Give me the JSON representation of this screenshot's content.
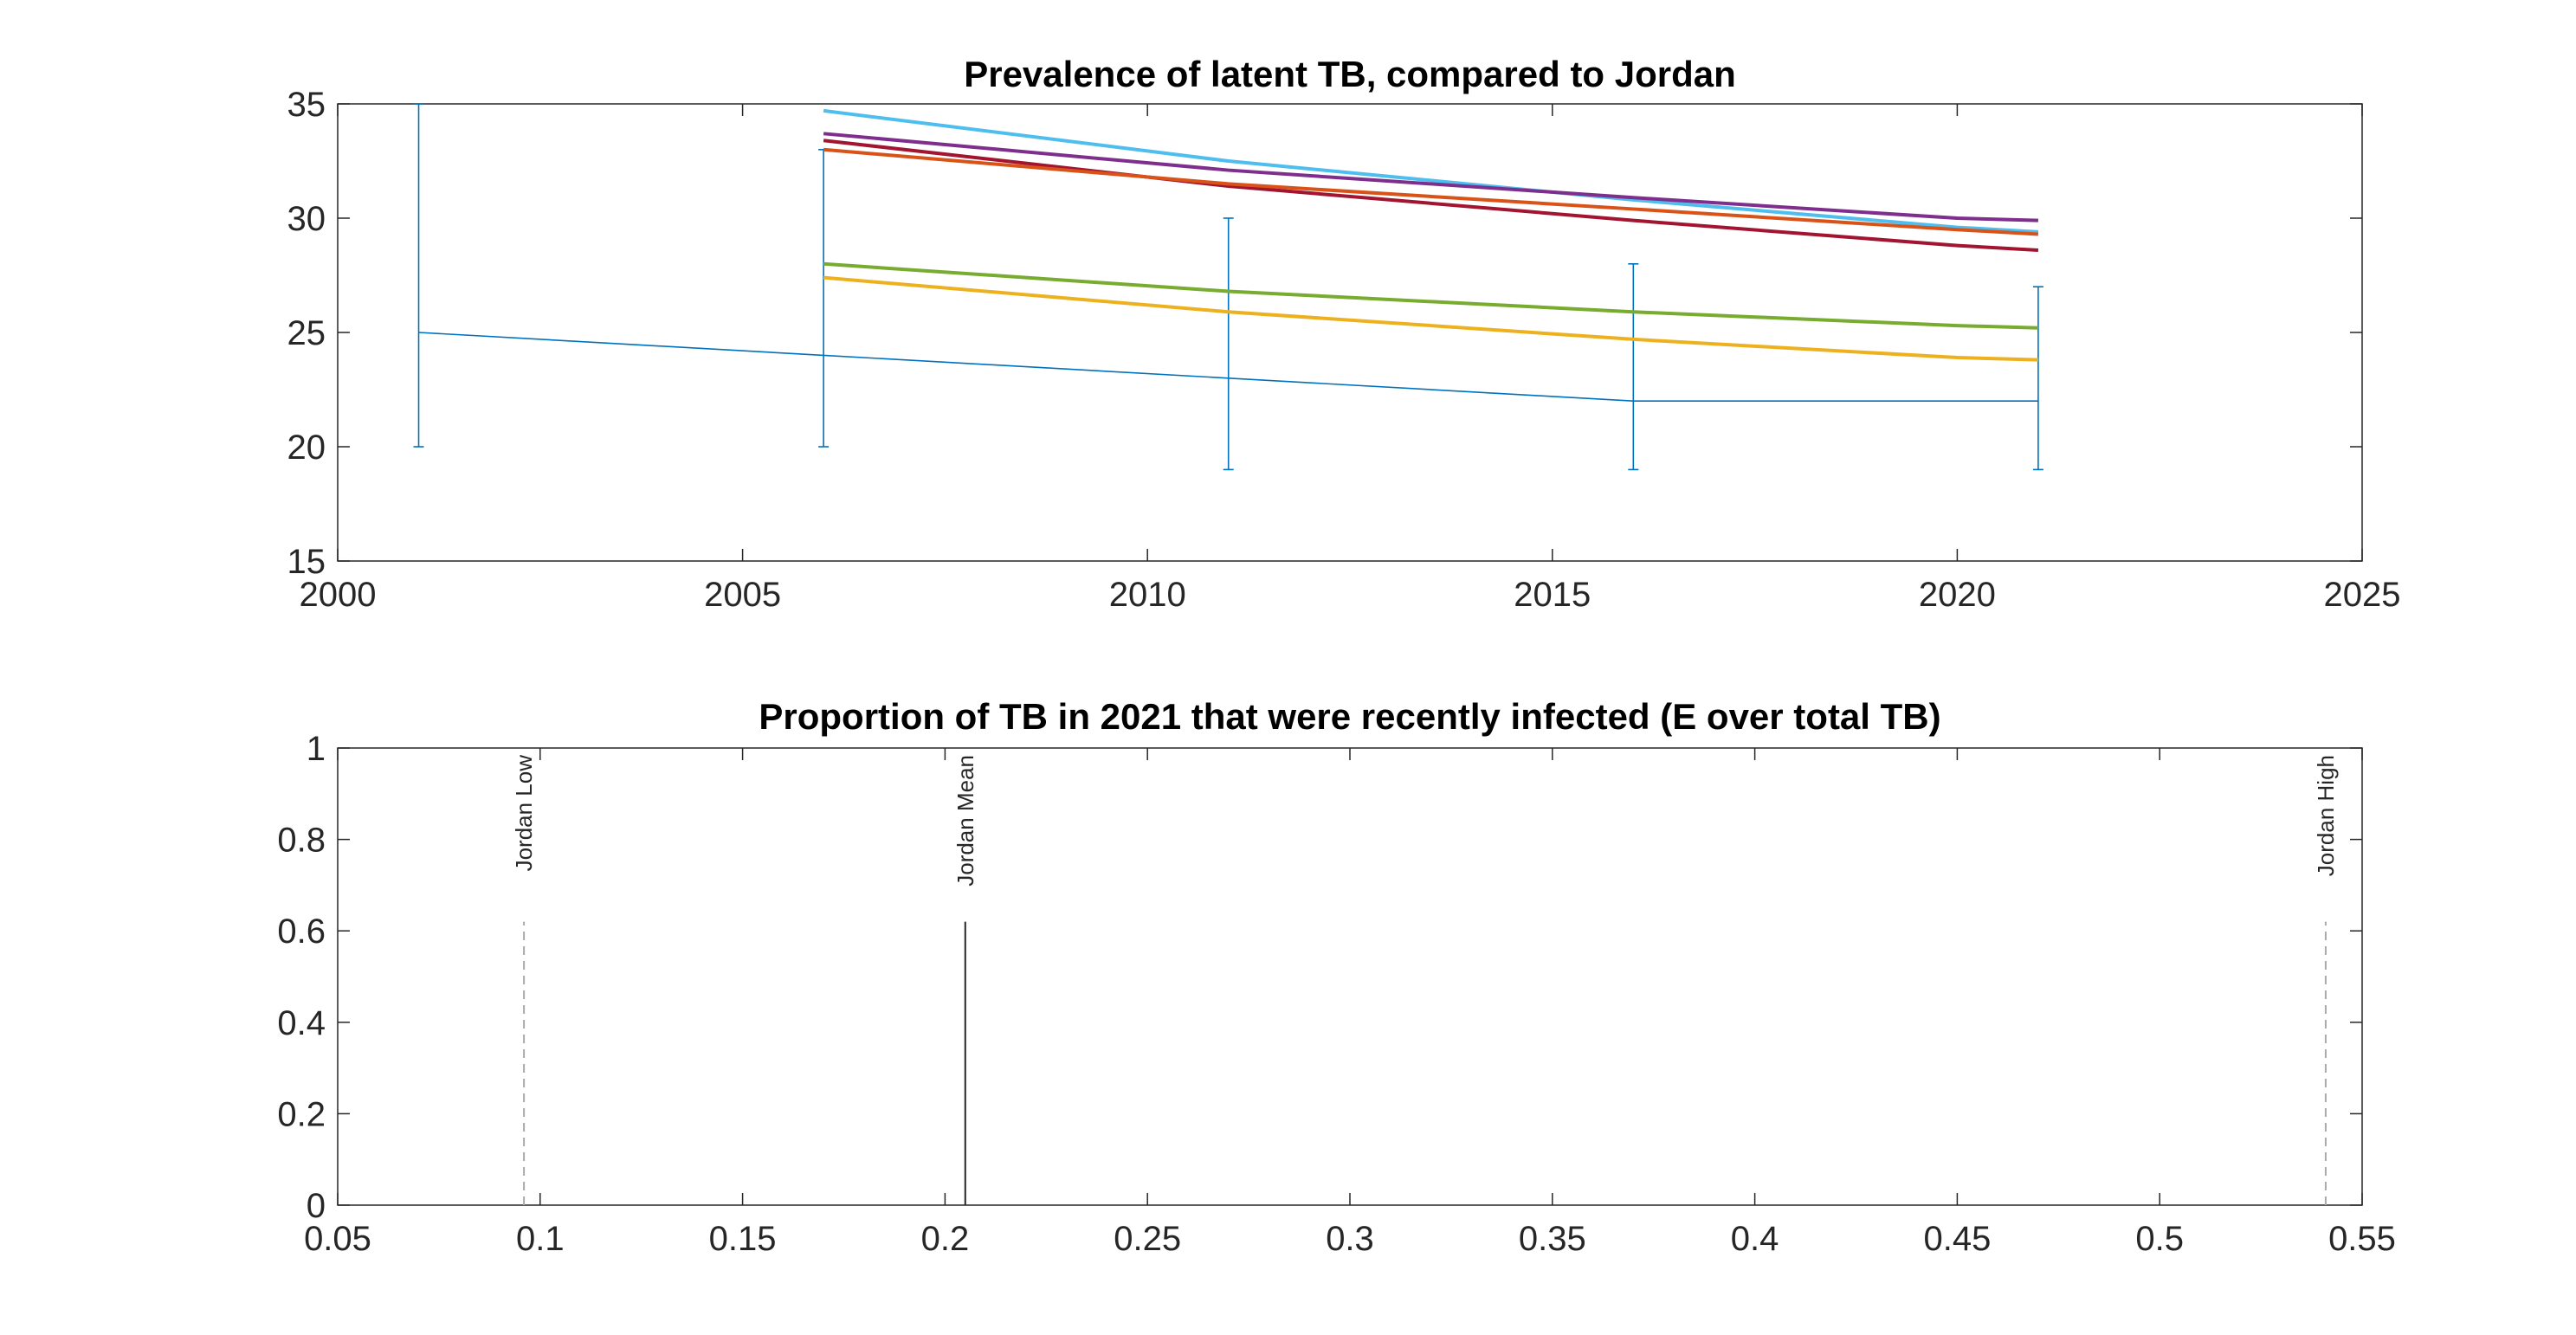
{
  "chart_data": [
    {
      "type": "line",
      "title": "Prevalence of latent TB, compared to Jordan",
      "xlabel": "",
      "ylabel": "",
      "xlim": [
        2000,
        2025
      ],
      "ylim": [
        15,
        35
      ],
      "xticks": [
        2000,
        2005,
        2010,
        2015,
        2020,
        2025
      ],
      "yticks": [
        15,
        20,
        25,
        30,
        35
      ],
      "grid": false,
      "errorbar_series": {
        "color": "#0072BD",
        "x": [
          2001,
          2006,
          2011,
          2016,
          2020,
          2021
        ],
        "y": [
          25,
          24,
          23,
          22,
          22,
          22
        ],
        "lower": [
          20,
          20,
          19,
          19,
          null,
          19
        ],
        "upper": [
          35,
          33,
          30,
          28,
          null,
          27
        ]
      },
      "series": [
        {
          "color": "#4DBEEE",
          "x": [
            2006,
            2011,
            2016,
            2020,
            2021
          ],
          "y": [
            34.7,
            32.5,
            30.8,
            29.6,
            29.4
          ]
        },
        {
          "color": "#7E2F8E",
          "x": [
            2006,
            2011,
            2016,
            2020,
            2021
          ],
          "y": [
            33.7,
            32.1,
            30.9,
            30.0,
            29.9
          ]
        },
        {
          "color": "#A2142F",
          "x": [
            2006,
            2011,
            2016,
            2020,
            2021
          ],
          "y": [
            33.4,
            31.4,
            29.9,
            28.8,
            28.6
          ]
        },
        {
          "color": "#D95319",
          "x": [
            2006,
            2011,
            2016,
            2020,
            2021
          ],
          "y": [
            33.0,
            31.5,
            30.4,
            29.5,
            29.3
          ]
        },
        {
          "color": "#77AC30",
          "x": [
            2006,
            2011,
            2016,
            2020,
            2021
          ],
          "y": [
            28.0,
            26.8,
            25.9,
            25.3,
            25.2
          ]
        },
        {
          "color": "#EDB120",
          "x": [
            2006,
            2011,
            2016,
            2020,
            2021
          ],
          "y": [
            27.4,
            25.9,
            24.7,
            23.9,
            23.8
          ]
        }
      ]
    },
    {
      "type": "line",
      "title": "Proportion of TB in 2021 that were recently infected (E over total TB)",
      "xlabel": "",
      "ylabel": "",
      "xlim": [
        0.05,
        0.55
      ],
      "ylim": [
        0,
        1
      ],
      "xticks": [
        0.05,
        0.1,
        0.15,
        0.2,
        0.25,
        0.3,
        0.35,
        0.4,
        0.45,
        0.5,
        0.55
      ],
      "yticks": [
        0,
        0.2,
        0.4,
        0.6,
        0.8,
        1
      ],
      "grid": false,
      "reference_lines": [
        {
          "label": "Jordan Low",
          "x": 0.096,
          "style": "dashed",
          "color": "#aaaaaa"
        },
        {
          "label": "Jordan Mean",
          "x": 0.205,
          "style": "solid",
          "color": "#262626"
        },
        {
          "label": "Jordan High",
          "x": 0.541,
          "style": "dashed",
          "color": "#aaaaaa"
        }
      ]
    }
  ]
}
